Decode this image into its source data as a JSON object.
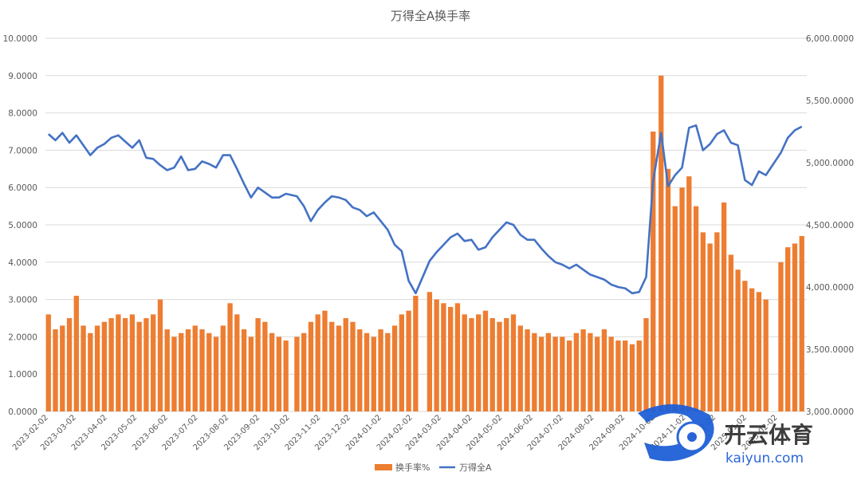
{
  "chart_data": {
    "type": "bar+line",
    "title": "万得全A换手率",
    "legend": [
      "换手率%",
      "万得全A"
    ],
    "legend_position": "bottom",
    "grid": true,
    "y_left": {
      "min": 0,
      "max": 10,
      "step": 1,
      "ticks": [
        "0.0000",
        "1.0000",
        "2.0000",
        "3.0000",
        "4.0000",
        "5.0000",
        "6.0000",
        "7.0000",
        "8.0000",
        "9.0000",
        "10.0000"
      ]
    },
    "y_right": {
      "min": 3000,
      "max": 6000,
      "step": 500,
      "ticks": [
        "3,000.0000",
        "3,500.0000",
        "4,000.0000",
        "4,500.0000",
        "5,000.0000",
        "5,500.0000",
        "6,000.0000"
      ]
    },
    "x_ticks": [
      "2023-02-02",
      "2023-03-02",
      "2023-04-02",
      "2023-05-02",
      "2023-06-02",
      "2023-07-02",
      "2023-08-02",
      "2023-09-02",
      "2023-10-02",
      "2023-11-02",
      "2023-12-02",
      "2024-01-02",
      "2024-02-02",
      "2024-03-02",
      "2024-04-02",
      "2024-05-02",
      "2024-06-02",
      "2024-07-02",
      "2024-08-02",
      "2024-09-02",
      "2024-10-02",
      "2024-11-02",
      "2024-12-02",
      "2025-01-02",
      "2025-02-02"
    ],
    "series": [
      {
        "name": "换手率%",
        "type": "bar",
        "axis": "left",
        "color": "#ED7D31",
        "points": [
          [
            "2023-02-02",
            2.6
          ],
          [
            "2023-02-09",
            2.2
          ],
          [
            "2023-02-16",
            2.3
          ],
          [
            "2023-02-23",
            2.5
          ],
          [
            "2023-03-02",
            3.1
          ],
          [
            "2023-03-09",
            2.3
          ],
          [
            "2023-03-16",
            2.1
          ],
          [
            "2023-03-23",
            2.3
          ],
          [
            "2023-03-30",
            2.4
          ],
          [
            "2023-04-06",
            2.5
          ],
          [
            "2023-04-13",
            2.6
          ],
          [
            "2023-04-20",
            2.5
          ],
          [
            "2023-04-27",
            2.6
          ],
          [
            "2023-05-04",
            2.4
          ],
          [
            "2023-05-11",
            2.5
          ],
          [
            "2023-05-18",
            2.6
          ],
          [
            "2023-05-25",
            3.0
          ],
          [
            "2023-06-01",
            2.2
          ],
          [
            "2023-06-08",
            2.0
          ],
          [
            "2023-06-15",
            2.1
          ],
          [
            "2023-06-22",
            2.2
          ],
          [
            "2023-06-29",
            2.3
          ],
          [
            "2023-07-06",
            2.2
          ],
          [
            "2023-07-13",
            2.1
          ],
          [
            "2023-07-20",
            2.0
          ],
          [
            "2023-07-27",
            2.3
          ],
          [
            "2023-08-03",
            2.9
          ],
          [
            "2023-08-10",
            2.6
          ],
          [
            "2023-08-17",
            2.2
          ],
          [
            "2023-08-24",
            2.0
          ],
          [
            "2023-08-31",
            2.5
          ],
          [
            "2023-09-07",
            2.4
          ],
          [
            "2023-09-14",
            2.1
          ],
          [
            "2023-09-21",
            2.0
          ],
          [
            "2023-09-28",
            1.9
          ],
          [
            "2023-10-09",
            2.0
          ],
          [
            "2023-10-16",
            2.1
          ],
          [
            "2023-10-23",
            2.4
          ],
          [
            "2023-10-30",
            2.6
          ],
          [
            "2023-11-06",
            2.7
          ],
          [
            "2023-11-13",
            2.4
          ],
          [
            "2023-11-20",
            2.3
          ],
          [
            "2023-11-27",
            2.5
          ],
          [
            "2023-12-04",
            2.4
          ],
          [
            "2023-12-11",
            2.2
          ],
          [
            "2023-12-18",
            2.1
          ],
          [
            "2023-12-25",
            2.0
          ],
          [
            "2024-01-01",
            2.2
          ],
          [
            "2024-01-08",
            2.1
          ],
          [
            "2024-01-15",
            2.3
          ],
          [
            "2024-01-22",
            2.6
          ],
          [
            "2024-01-29",
            2.7
          ],
          [
            "2024-02-05",
            3.1
          ],
          [
            "2024-02-19",
            3.2
          ],
          [
            "2024-02-26",
            3.0
          ],
          [
            "2024-03-04",
            2.9
          ],
          [
            "2024-03-11",
            2.8
          ],
          [
            "2024-03-18",
            2.9
          ],
          [
            "2024-03-25",
            2.6
          ],
          [
            "2024-04-01",
            2.5
          ],
          [
            "2024-04-08",
            2.6
          ],
          [
            "2024-04-15",
            2.7
          ],
          [
            "2024-04-22",
            2.5
          ],
          [
            "2024-04-29",
            2.4
          ],
          [
            "2024-05-06",
            2.5
          ],
          [
            "2024-05-13",
            2.6
          ],
          [
            "2024-05-20",
            2.3
          ],
          [
            "2024-05-27",
            2.2
          ],
          [
            "2024-06-03",
            2.1
          ],
          [
            "2024-06-10",
            2.0
          ],
          [
            "2024-06-17",
            2.1
          ],
          [
            "2024-06-24",
            2.0
          ],
          [
            "2024-07-01",
            2.0
          ],
          [
            "2024-07-08",
            1.9
          ],
          [
            "2024-07-15",
            2.1
          ],
          [
            "2024-07-22",
            2.2
          ],
          [
            "2024-07-29",
            2.1
          ],
          [
            "2024-08-05",
            2.0
          ],
          [
            "2024-08-12",
            2.2
          ],
          [
            "2024-08-19",
            2.0
          ],
          [
            "2024-08-26",
            1.9
          ],
          [
            "2024-09-02",
            1.9
          ],
          [
            "2024-09-09",
            1.8
          ],
          [
            "2024-09-16",
            1.9
          ],
          [
            "2024-09-23",
            2.5
          ],
          [
            "2024-09-30",
            7.5
          ],
          [
            "2024-10-08",
            9.0
          ],
          [
            "2024-10-15",
            6.5
          ],
          [
            "2024-10-22",
            5.5
          ],
          [
            "2024-10-29",
            6.0
          ],
          [
            "2024-11-05",
            6.3
          ],
          [
            "2024-11-12",
            5.5
          ],
          [
            "2024-11-19",
            4.8
          ],
          [
            "2024-11-26",
            4.5
          ],
          [
            "2024-12-03",
            4.8
          ],
          [
            "2024-12-10",
            5.6
          ],
          [
            "2024-12-17",
            4.2
          ],
          [
            "2024-12-24",
            3.8
          ],
          [
            "2024-12-31",
            3.5
          ],
          [
            "2025-01-07",
            3.3
          ],
          [
            "2025-01-14",
            3.2
          ],
          [
            "2025-01-21",
            3.0
          ],
          [
            "2025-02-05",
            4.0
          ],
          [
            "2025-02-12",
            4.4
          ],
          [
            "2025-02-19",
            4.5
          ],
          [
            "2025-02-26",
            4.7
          ]
        ]
      },
      {
        "name": "万得全A",
        "type": "line",
        "axis": "right",
        "color": "#4472C4",
        "points": [
          [
            "2023-02-02",
            5230
          ],
          [
            "2023-02-09",
            5180
          ],
          [
            "2023-02-16",
            5240
          ],
          [
            "2023-02-23",
            5160
          ],
          [
            "2023-03-02",
            5220
          ],
          [
            "2023-03-09",
            5140
          ],
          [
            "2023-03-16",
            5060
          ],
          [
            "2023-03-23",
            5120
          ],
          [
            "2023-03-30",
            5150
          ],
          [
            "2023-04-06",
            5200
          ],
          [
            "2023-04-13",
            5220
          ],
          [
            "2023-04-20",
            5170
          ],
          [
            "2023-04-27",
            5120
          ],
          [
            "2023-05-04",
            5180
          ],
          [
            "2023-05-11",
            5040
          ],
          [
            "2023-05-18",
            5030
          ],
          [
            "2023-05-25",
            4980
          ],
          [
            "2023-06-01",
            4940
          ],
          [
            "2023-06-08",
            4960
          ],
          [
            "2023-06-15",
            5050
          ],
          [
            "2023-06-22",
            4940
          ],
          [
            "2023-06-29",
            4950
          ],
          [
            "2023-07-06",
            5010
          ],
          [
            "2023-07-13",
            4990
          ],
          [
            "2023-07-20",
            4960
          ],
          [
            "2023-07-27",
            5060
          ],
          [
            "2023-08-03",
            5060
          ],
          [
            "2023-08-10",
            4950
          ],
          [
            "2023-08-17",
            4830
          ],
          [
            "2023-08-24",
            4720
          ],
          [
            "2023-08-31",
            4800
          ],
          [
            "2023-09-07",
            4760
          ],
          [
            "2023-09-14",
            4720
          ],
          [
            "2023-09-21",
            4720
          ],
          [
            "2023-09-28",
            4750
          ],
          [
            "2023-10-09",
            4730
          ],
          [
            "2023-10-16",
            4650
          ],
          [
            "2023-10-23",
            4530
          ],
          [
            "2023-10-30",
            4620
          ],
          [
            "2023-11-06",
            4680
          ],
          [
            "2023-11-13",
            4730
          ],
          [
            "2023-11-20",
            4720
          ],
          [
            "2023-11-27",
            4700
          ],
          [
            "2023-12-04",
            4640
          ],
          [
            "2023-12-11",
            4620
          ],
          [
            "2023-12-18",
            4570
          ],
          [
            "2023-12-25",
            4600
          ],
          [
            "2024-01-01",
            4530
          ],
          [
            "2024-01-08",
            4460
          ],
          [
            "2024-01-15",
            4340
          ],
          [
            "2024-01-22",
            4290
          ],
          [
            "2024-01-29",
            4050
          ],
          [
            "2024-02-05",
            3950
          ],
          [
            "2024-02-19",
            4210
          ],
          [
            "2024-02-26",
            4280
          ],
          [
            "2024-03-04",
            4340
          ],
          [
            "2024-03-11",
            4400
          ],
          [
            "2024-03-18",
            4430
          ],
          [
            "2024-03-25",
            4370
          ],
          [
            "2024-04-01",
            4380
          ],
          [
            "2024-04-08",
            4300
          ],
          [
            "2024-04-15",
            4320
          ],
          [
            "2024-04-22",
            4400
          ],
          [
            "2024-04-29",
            4460
          ],
          [
            "2024-05-06",
            4520
          ],
          [
            "2024-05-13",
            4500
          ],
          [
            "2024-05-20",
            4420
          ],
          [
            "2024-05-27",
            4380
          ],
          [
            "2024-06-03",
            4380
          ],
          [
            "2024-06-10",
            4310
          ],
          [
            "2024-06-17",
            4250
          ],
          [
            "2024-06-24",
            4200
          ],
          [
            "2024-07-01",
            4180
          ],
          [
            "2024-07-08",
            4150
          ],
          [
            "2024-07-15",
            4180
          ],
          [
            "2024-07-22",
            4140
          ],
          [
            "2024-07-29",
            4100
          ],
          [
            "2024-08-05",
            4080
          ],
          [
            "2024-08-12",
            4060
          ],
          [
            "2024-08-19",
            4020
          ],
          [
            "2024-08-26",
            4000
          ],
          [
            "2024-09-02",
            3990
          ],
          [
            "2024-09-09",
            3950
          ],
          [
            "2024-09-16",
            3960
          ],
          [
            "2024-09-23",
            4080
          ],
          [
            "2024-09-30",
            4850
          ],
          [
            "2024-10-08",
            5240
          ],
          [
            "2024-10-15",
            4810
          ],
          [
            "2024-10-22",
            4900
          ],
          [
            "2024-10-29",
            4960
          ],
          [
            "2024-11-05",
            5280
          ],
          [
            "2024-11-12",
            5300
          ],
          [
            "2024-11-19",
            5100
          ],
          [
            "2024-11-26",
            5150
          ],
          [
            "2024-12-03",
            5230
          ],
          [
            "2024-12-10",
            5260
          ],
          [
            "2024-12-17",
            5160
          ],
          [
            "2024-12-24",
            5140
          ],
          [
            "2024-12-31",
            4860
          ],
          [
            "2025-01-07",
            4820
          ],
          [
            "2025-01-14",
            4930
          ],
          [
            "2025-01-21",
            4900
          ],
          [
            "2025-02-05",
            5080
          ],
          [
            "2025-02-12",
            5200
          ],
          [
            "2025-02-19",
            5260
          ],
          [
            "2025-02-26",
            5290
          ]
        ]
      }
    ]
  },
  "watermark": {
    "brand": "开云体育",
    "domain": "kaiyun.com"
  }
}
